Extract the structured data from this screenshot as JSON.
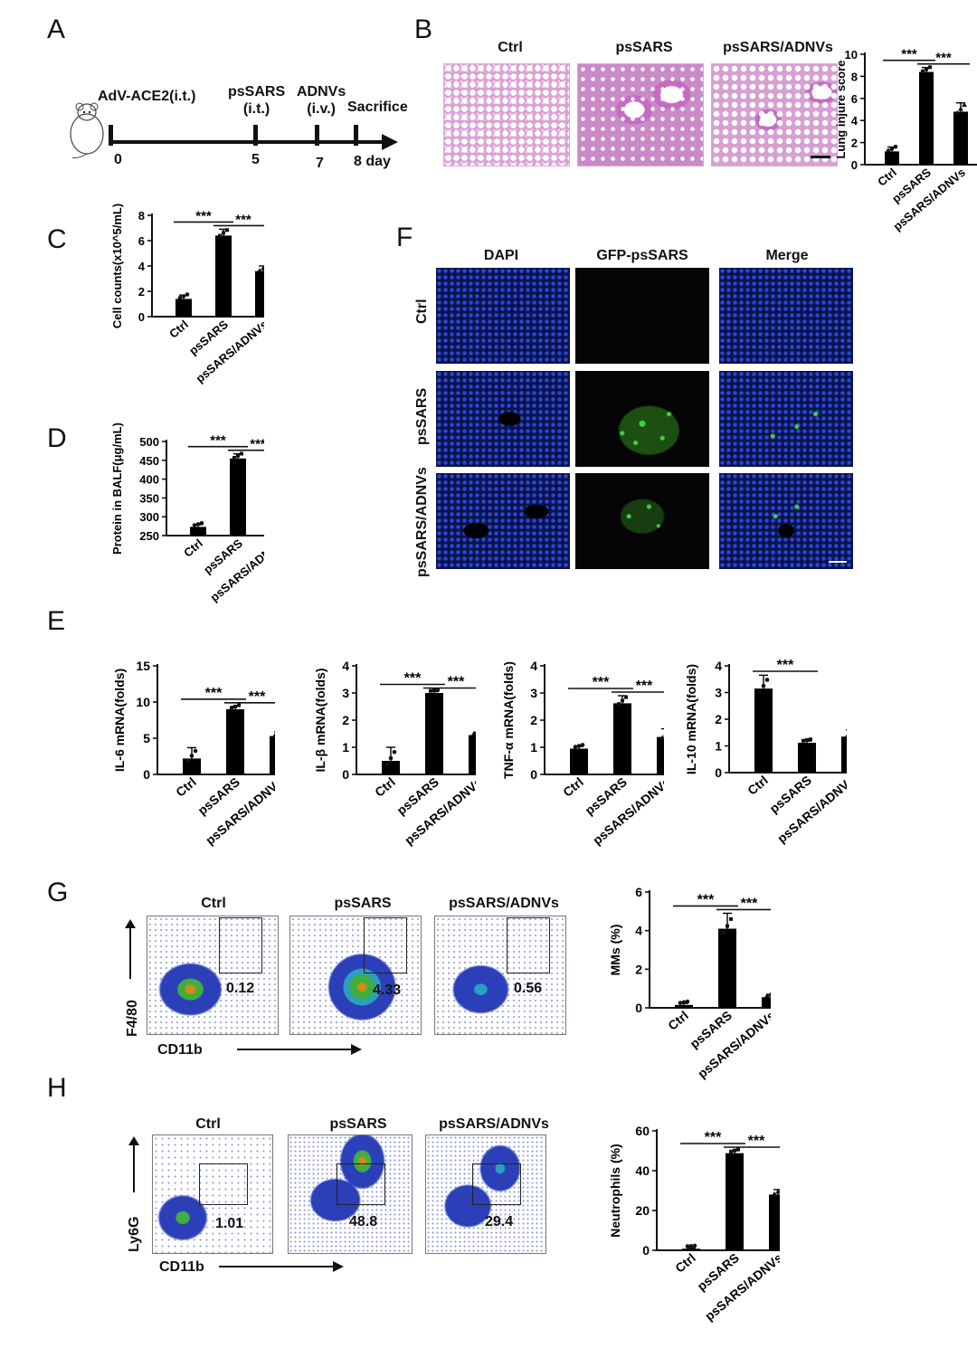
{
  "panels": {
    "A": "A",
    "B": "B",
    "C": "C",
    "D": "D",
    "E": "E",
    "F": "F",
    "G": "G",
    "H": "H"
  },
  "timeline": {
    "steps": [
      {
        "label": "AdV-ACE2(i.t.)",
        "day": "0"
      },
      {
        "label": "psSARS\n(i.t.)",
        "day": "5"
      },
      {
        "label": "ADNVs\n(i.v.)",
        "day": "7"
      },
      {
        "label": "Sacrifice",
        "day": "8 day"
      }
    ]
  },
  "groups": [
    "Ctrl",
    "psSARS",
    "psSARS/ADNVs"
  ],
  "histology": {
    "columns": [
      "Ctrl",
      "psSARS",
      "psSARS/ADNVs"
    ]
  },
  "immunofluorescence": {
    "columns": [
      "DAPI",
      "GFP-psSARS",
      "Merge"
    ],
    "rows": [
      "Ctrl",
      "psSARS",
      "psSARS/ADNVs"
    ],
    "colors": {
      "dapi": "#1a2ea8",
      "gfp": "#3ed13e",
      "background": "#0c1240"
    }
  },
  "flow_G": {
    "columns": [
      "Ctrl",
      "psSARS",
      "psSARS/ADNVs"
    ],
    "values": [
      "0.12",
      "4.33",
      "0.56"
    ],
    "y_axis": "F4/80",
    "x_axis": "CD11b"
  },
  "flow_H": {
    "columns": [
      "Ctrl",
      "psSARS",
      "psSARS/ADNVs"
    ],
    "values": [
      "1.01",
      "48.8",
      "29.4"
    ],
    "y_axis": "Ly6G",
    "x_axis": "CD11b"
  },
  "chart_data": [
    {
      "id": "B",
      "type": "bar",
      "categories": [
        "Ctrl",
        "psSARS",
        "psSARS/ADNVs"
      ],
      "values": [
        1.2,
        8.4,
        4.8
      ],
      "errors": [
        0.4,
        0.4,
        0.8
      ],
      "ylabel": "Lung injure score",
      "ylim": [
        0,
        10
      ],
      "yticks": [
        0,
        2,
        4,
        6,
        8,
        10
      ],
      "significance": [
        "***",
        "***"
      ]
    },
    {
      "id": "C",
      "type": "bar",
      "categories": [
        "Ctrl",
        "psSARS",
        "psSARS/ADNVs"
      ],
      "values": [
        1.4,
        6.4,
        3.6
      ],
      "errors": [
        0.3,
        0.5,
        0.4
      ],
      "ylabel": "Cell counts(x10^5/mL)",
      "ylim": [
        0,
        8
      ],
      "yticks": [
        0,
        2,
        4,
        6,
        8
      ],
      "significance": [
        "***",
        "***"
      ]
    },
    {
      "id": "D",
      "type": "bar",
      "categories": [
        "Ctrl",
        "psSARS",
        "psSARS/ADNVs"
      ],
      "values": [
        273,
        455,
        291
      ],
      "errors": [
        6,
        12,
        22
      ],
      "ylabel": "Protein in BALF(μg/mL)",
      "ylim": [
        250,
        500
      ],
      "yticks": [
        250,
        300,
        350,
        400,
        450,
        500
      ],
      "significance": [
        "***",
        "***"
      ]
    },
    {
      "id": "E1",
      "type": "bar",
      "categories": [
        "Ctrl",
        "psSARS",
        "psSARS/ADNVs"
      ],
      "values": [
        2.2,
        9.0,
        5.3
      ],
      "errors": [
        1.5,
        0.4,
        0.6
      ],
      "ylabel": "IL-6 mRNA(folds)",
      "ylim": [
        0,
        15
      ],
      "yticks": [
        0,
        5,
        10,
        15
      ],
      "significance": [
        "***",
        "***"
      ]
    },
    {
      "id": "E2",
      "type": "bar",
      "categories": [
        "Ctrl",
        "psSARS",
        "psSARS/ADNVs"
      ],
      "values": [
        0.5,
        3.0,
        1.45
      ],
      "errors": [
        0.5,
        0.05,
        0.1
      ],
      "ylabel": "IL-β mRNA(folds)",
      "ylim": [
        0,
        4
      ],
      "yticks": [
        0,
        1,
        2,
        3,
        4
      ],
      "significance": [
        "***",
        "***"
      ]
    },
    {
      "id": "E3",
      "type": "bar",
      "categories": [
        "Ctrl",
        "psSARS",
        "psSARS/ADNVs"
      ],
      "values": [
        0.95,
        2.62,
        1.38
      ],
      "errors": [
        0.08,
        0.28,
        0.3
      ],
      "ylabel": "TNF-α mRNA(folds)",
      "ylim": [
        0,
        4
      ],
      "yticks": [
        0,
        1,
        2,
        3,
        4
      ],
      "significance": [
        "***",
        "***"
      ]
    },
    {
      "id": "E4",
      "type": "bar",
      "categories": [
        "Ctrl",
        "psSARS",
        "psSARS/ADNVs"
      ],
      "values": [
        3.15,
        1.12,
        1.35
      ],
      "errors": [
        0.5,
        0.06,
        0.25
      ],
      "ylabel": "IL-10 mRNA(folds)",
      "ylim": [
        0,
        4
      ],
      "yticks": [
        0,
        1,
        2,
        3,
        4
      ],
      "significance": [
        "***"
      ]
    },
    {
      "id": "G",
      "type": "bar",
      "categories": [
        "Ctrl",
        "psSARS",
        "psSARS/ADNVs"
      ],
      "values": [
        0.15,
        4.1,
        0.55
      ],
      "errors": [
        0.08,
        0.8,
        0.15
      ],
      "ylabel": "MMs (%)",
      "ylim": [
        0,
        6
      ],
      "yticks": [
        0,
        2,
        4,
        6
      ],
      "significance": [
        "***",
        "***"
      ]
    },
    {
      "id": "H",
      "type": "bar",
      "categories": [
        "Ctrl",
        "psSARS",
        "psSARS/ADNVs"
      ],
      "values": [
        0.8,
        48.8,
        28.0
      ],
      "errors": [
        0.3,
        1.2,
        2.5
      ],
      "ylabel": "Neutrophils (%)",
      "ylim": [
        0,
        60
      ],
      "yticks": [
        0,
        20,
        40,
        60
      ],
      "significance": [
        "***",
        "***"
      ]
    }
  ]
}
